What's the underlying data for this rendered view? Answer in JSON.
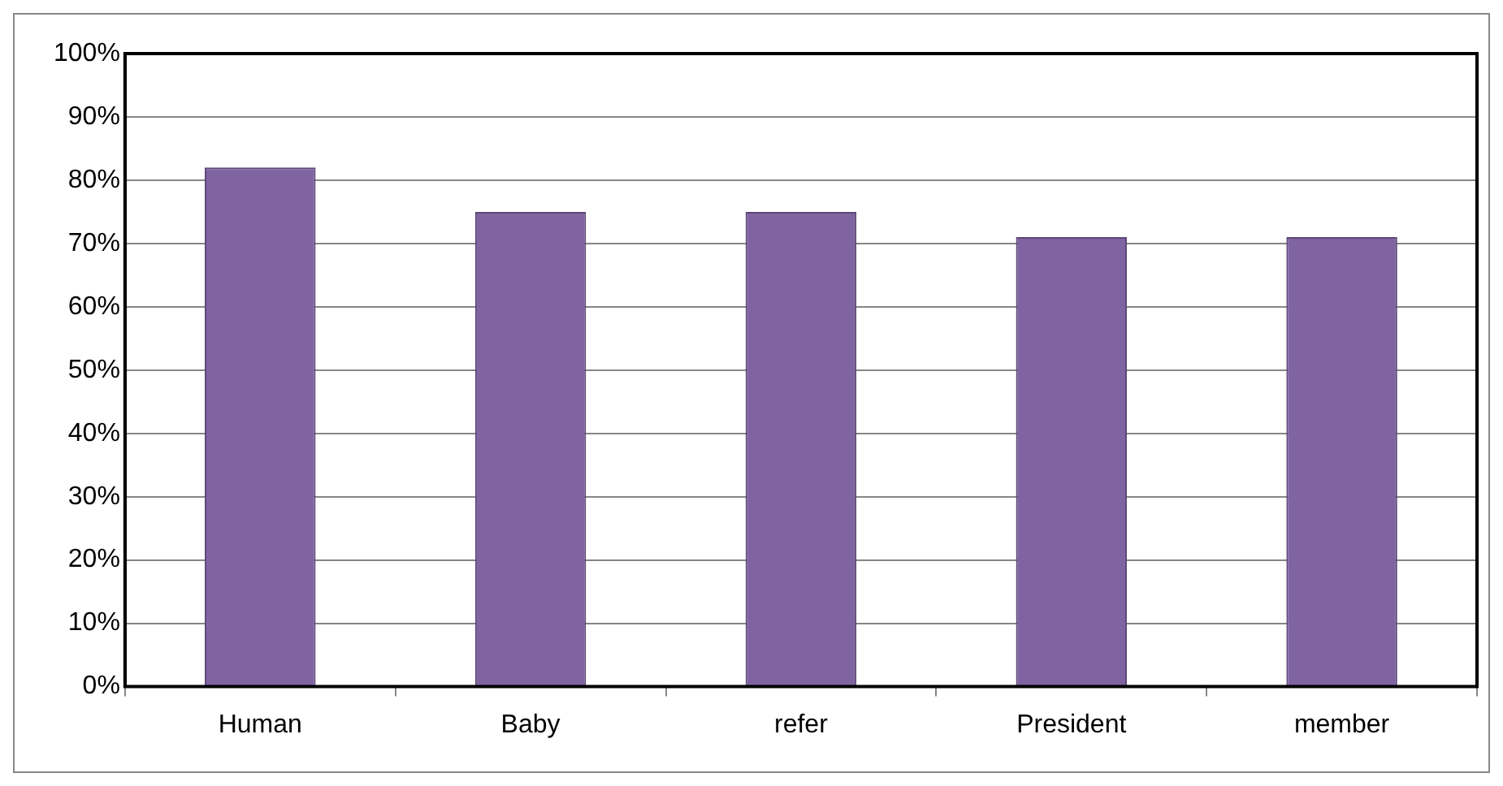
{
  "chart_data": {
    "type": "bar",
    "categories": [
      "Human",
      "Baby",
      "refer",
      "President",
      "member"
    ],
    "values": [
      82,
      75,
      75,
      71,
      71
    ],
    "color": "#8064a2",
    "ylim": [
      0,
      100
    ],
    "yticks": [
      {
        "value": 0,
        "label": "0%"
      },
      {
        "value": 10,
        "label": "10%"
      },
      {
        "value": 20,
        "label": "20%"
      },
      {
        "value": 30,
        "label": "30%"
      },
      {
        "value": 40,
        "label": "40%"
      },
      {
        "value": 50,
        "label": "50%"
      },
      {
        "value": 60,
        "label": "60%"
      },
      {
        "value": 70,
        "label": "70%"
      },
      {
        "value": 80,
        "label": "80%"
      },
      {
        "value": 90,
        "label": "90%"
      },
      {
        "value": 100,
        "label": "100%"
      }
    ],
    "grid": "y",
    "legend": false
  }
}
